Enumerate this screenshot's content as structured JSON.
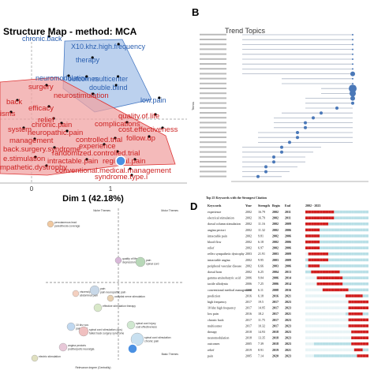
{
  "panel_letters": {
    "b": "B",
    "d": "D"
  },
  "chart_data": [
    {
      "id": "A",
      "type": "scatter",
      "title": "Structure Map - method: MCA",
      "xlabel": "Dim 1 (42.18%)",
      "xticks": [
        "0",
        "1"
      ],
      "clusters": {
        "blue": [
          "chronic.back",
          "X10.khz.high.frequency",
          "therapy",
          "neuromodulation",
          "outcomes",
          "multicenter",
          "double.blind",
          "low.pain"
        ],
        "red": [
          "surgery",
          "neurostimulation",
          "back",
          "efficacy",
          "quality.of.life",
          "isms",
          "relief",
          "complications",
          "chronic.pain",
          "system",
          "neuropathic.pain",
          "cost.effectiveness",
          "management",
          "controlled.trial",
          "follow.up",
          "back.surgery.syndrome",
          "experience",
          "randomized.controlled.trial",
          "e.stimulation",
          "intractable.pain",
          "regional.pain",
          "mpathetic.dystrophy",
          "conventional.medical.management",
          "syndrome.type.i"
        ]
      }
    },
    {
      "id": "B",
      "type": "scatter",
      "title": "Trend Topics",
      "ylabel": "Terms",
      "n_terms": 30
    },
    {
      "id": "C",
      "type": "scatter",
      "xlabel": "Relevance degree (Centrality)",
      "ylabel": "",
      "quadrants": [
        "Niche Themes",
        "Motor Themes",
        "Basic Themes"
      ],
      "themes": [
        {
          "label": "percutaneous lead",
          "sub": "paresthesia coverage"
        },
        {
          "label": "quality of life",
          "sub": "depression"
        },
        {
          "label": "pain",
          "sub": "spinal cord"
        },
        {
          "label": "visceral pain",
          "sub": "abdominal pain"
        },
        {
          "label": "pain",
          "sub": "pain neuropathic pain"
        },
        {
          "label": "occipital nerve stimulation",
          "sub": ""
        },
        {
          "label": "effective stimulation therapy",
          "sub": ""
        },
        {
          "label": "10 khz scs",
          "sub": "pain relief"
        },
        {
          "label": "spinal cord stimulation (scs)",
          "sub": "failed back surgery syndrome"
        },
        {
          "label": "spinal cord injury",
          "sub": "cost effectiveness"
        },
        {
          "label": "angina pectoris",
          "sub": "postherpetic neuralgia"
        },
        {
          "label": "spinal cord stimulation",
          "sub": "chronic pain"
        },
        {
          "label": "electric stimulation",
          "sub": ""
        }
      ]
    },
    {
      "id": "D",
      "type": "table",
      "title": "Top 25 Keywords with the Strongest Citation",
      "columns": [
        "Keywords",
        "Year",
        "Strength",
        "Begin",
        "End",
        "2002 - 2023"
      ],
      "range_labels": [
        "2002",
        "2023"
      ],
      "rows": [
        [
          "experience",
          "2002",
          "16.79",
          "2002",
          "2011"
        ],
        [
          "electrical stimulation",
          "2002",
          "16.79",
          "2002",
          "2011"
        ],
        [
          "dorsal column stimulation",
          "2002",
          "11.16",
          "2002",
          "2009"
        ],
        [
          "angina pectori",
          "2002",
          "11.32",
          "2002",
          "2006"
        ],
        [
          "intractable pain",
          "2002",
          "9.81",
          "2002",
          "2006"
        ],
        [
          "blood flow",
          "2002",
          "6.18",
          "2002",
          "2006"
        ],
        [
          "relief",
          "2002",
          "6.97",
          "2002",
          "2006"
        ],
        [
          "reflex sympathetic dystrophy",
          "2003",
          "21.91",
          "2003",
          "2009"
        ],
        [
          "intractable angina",
          "2002",
          "9.95",
          "2003",
          "2009"
        ],
        [
          "peripheral vascular disease",
          "2002",
          "6.66",
          "2003",
          "2006"
        ],
        [
          "dorsal horn",
          "2002",
          "6.25",
          "2004",
          "2013"
        ],
        [
          "gamma aminobutyric acid",
          "2006",
          "9.04",
          "2006",
          "2014"
        ],
        [
          "tactile allodynia",
          "2006",
          "7.25",
          "2006",
          "2014"
        ],
        [
          "conventional medical management",
          "2008",
          "6.11",
          "2008",
          "2016"
        ],
        [
          "prediction",
          "2016",
          "6.18",
          "2016",
          "2021"
        ],
        [
          "high frequency",
          "2017",
          "19.5",
          "2017",
          "2023"
        ],
        [
          "10 khz high frequency",
          "2017",
          "14.95",
          "2017",
          "2023"
        ],
        [
          "low pain",
          "2016",
          "18.2",
          "2017",
          "2021"
        ],
        [
          "chronic back",
          "2017",
          "11.75",
          "2017",
          "2023"
        ],
        [
          "multicenter",
          "2017",
          "10.32",
          "2017",
          "2023"
        ],
        [
          "therapy",
          "2018",
          "14.93",
          "2018",
          "2023"
        ],
        [
          "neuromodulation",
          "2018",
          "13.35",
          "2018",
          "2023"
        ],
        [
          "outcomes",
          "2005",
          "7.39",
          "2018",
          "2023"
        ],
        [
          "relief",
          "2019",
          "8.91",
          "2019",
          "2021"
        ],
        [
          "pain",
          "2005",
          "7.14",
          "2020",
          "2023"
        ]
      ]
    }
  ]
}
